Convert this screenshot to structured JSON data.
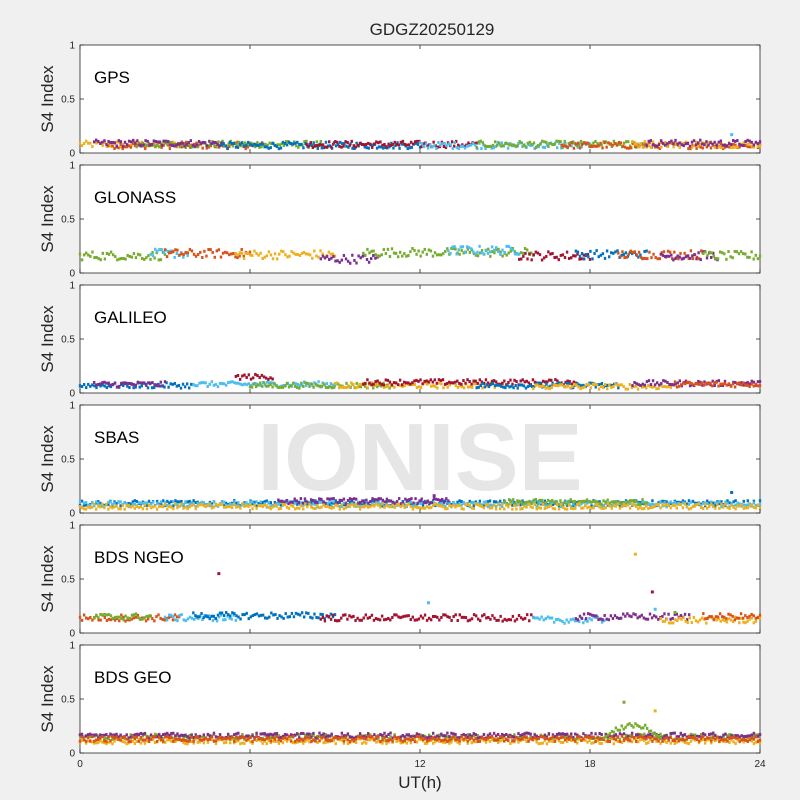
{
  "chart_data": {
    "type": "scatter",
    "title": "GDGZ20250129",
    "xlabel": "UT(h)",
    "ylabel": "S4 Index",
    "xlim": [
      0,
      24
    ],
    "ylim": [
      0,
      1
    ],
    "xticks": [
      0,
      6,
      12,
      18,
      24
    ],
    "yticks": [
      0,
      0.5,
      1
    ],
    "watermark": "IONISE",
    "series_colors": [
      "#0072BD",
      "#D95319",
      "#EDB120",
      "#7E2F8E",
      "#77AC30",
      "#4DBEEE",
      "#A2142F"
    ],
    "panels": [
      {
        "label": "GPS",
        "baseline": 0.07,
        "noise": 0.03,
        "segments": [
          {
            "color": "#EDB120",
            "x0": 0.0,
            "x1": 4.0,
            "level": 0.08
          },
          {
            "color": "#D95319",
            "x0": 1.0,
            "x1": 6.5,
            "level": 0.07
          },
          {
            "color": "#77AC30",
            "x0": 2.0,
            "x1": 8.5,
            "level": 0.08
          },
          {
            "color": "#7E2F8E",
            "x0": 0.5,
            "x1": 5.0,
            "level": 0.09
          },
          {
            "color": "#0072BD",
            "x0": 5.0,
            "x1": 12.0,
            "level": 0.07
          },
          {
            "color": "#A2142F",
            "x0": 8.0,
            "x1": 14.0,
            "level": 0.08
          },
          {
            "color": "#4DBEEE",
            "x0": 12.0,
            "x1": 18.0,
            "level": 0.07
          },
          {
            "color": "#77AC30",
            "x0": 14.0,
            "x1": 20.0,
            "level": 0.08
          },
          {
            "color": "#D95319",
            "x0": 17.0,
            "x1": 24.0,
            "level": 0.07
          },
          {
            "color": "#EDB120",
            "x0": 19.5,
            "x1": 24.0,
            "level": 0.08
          },
          {
            "color": "#7E2F8E",
            "x0": 20.0,
            "x1": 24.0,
            "level": 0.09
          }
        ],
        "outliers": [
          {
            "x": 23.0,
            "y": 0.17,
            "color": "#4DBEEE"
          }
        ]
      },
      {
        "label": "GLONASS",
        "baseline": 0.17,
        "noise": 0.04,
        "segments": [
          {
            "color": "#77AC30",
            "x0": 0.0,
            "x1": 3.0,
            "level": 0.16
          },
          {
            "color": "#4DBEEE",
            "x0": 2.5,
            "x1": 3.8,
            "level": 0.18
          },
          {
            "color": "#D95319",
            "x0": 3.0,
            "x1": 6.0,
            "level": 0.18
          },
          {
            "color": "#EDB120",
            "x0": 5.5,
            "x1": 9.0,
            "level": 0.17
          },
          {
            "color": "#7E2F8E",
            "x0": 8.5,
            "x1": 10.5,
            "level": 0.13
          },
          {
            "color": "#77AC30",
            "x0": 10.0,
            "x1": 16.0,
            "level": 0.19
          },
          {
            "color": "#4DBEEE",
            "x0": 13.0,
            "x1": 15.5,
            "level": 0.21
          },
          {
            "color": "#A2142F",
            "x0": 15.5,
            "x1": 18.0,
            "level": 0.16
          },
          {
            "color": "#0072BD",
            "x0": 17.5,
            "x1": 20.0,
            "level": 0.17
          },
          {
            "color": "#D95319",
            "x0": 19.0,
            "x1": 22.0,
            "level": 0.17
          },
          {
            "color": "#7E2F8E",
            "x0": 20.5,
            "x1": 22.5,
            "level": 0.16
          },
          {
            "color": "#77AC30",
            "x0": 22.0,
            "x1": 24.0,
            "level": 0.16
          }
        ],
        "outliers": []
      },
      {
        "label": "GALILEO",
        "baseline": 0.07,
        "noise": 0.025,
        "segments": [
          {
            "color": "#0072BD",
            "x0": 0.0,
            "x1": 4.0,
            "level": 0.07
          },
          {
            "color": "#7E2F8E",
            "x0": 0.5,
            "x1": 3.0,
            "level": 0.08
          },
          {
            "color": "#A2142F",
            "x0": 5.5,
            "x1": 6.8,
            "level": 0.15
          },
          {
            "color": "#4DBEEE",
            "x0": 4.0,
            "x1": 9.0,
            "level": 0.08
          },
          {
            "color": "#77AC30",
            "x0": 6.0,
            "x1": 11.0,
            "level": 0.07
          },
          {
            "color": "#EDB120",
            "x0": 9.0,
            "x1": 15.0,
            "level": 0.07
          },
          {
            "color": "#A2142F",
            "x0": 10.0,
            "x1": 17.5,
            "level": 0.1
          },
          {
            "color": "#0072BD",
            "x0": 14.0,
            "x1": 19.0,
            "level": 0.07
          },
          {
            "color": "#EDB120",
            "x0": 16.0,
            "x1": 21.0,
            "level": 0.06
          },
          {
            "color": "#7E2F8E",
            "x0": 19.5,
            "x1": 24.0,
            "level": 0.09
          },
          {
            "color": "#D95319",
            "x0": 21.0,
            "x1": 24.0,
            "level": 0.08
          }
        ],
        "outliers": []
      },
      {
        "label": "SBAS",
        "baseline": 0.09,
        "noise": 0.025,
        "segments": [
          {
            "color": "#0072BD",
            "x0": 0.0,
            "x1": 24.0,
            "level": 0.09
          },
          {
            "color": "#4DBEEE",
            "x0": 0.0,
            "x1": 24.0,
            "level": 0.08
          },
          {
            "color": "#7E2F8E",
            "x0": 7.0,
            "x1": 13.0,
            "level": 0.11
          },
          {
            "color": "#77AC30",
            "x0": 15.0,
            "x1": 20.0,
            "level": 0.1
          },
          {
            "color": "#EDB120",
            "x0": 0.0,
            "x1": 24.0,
            "level": 0.06
          }
        ],
        "outliers": [
          {
            "x": 23.0,
            "y": 0.19,
            "color": "#0072BD"
          },
          {
            "x": 12.5,
            "y": 0.16,
            "color": "#7E2F8E"
          }
        ]
      },
      {
        "label": "BDS NGEO",
        "baseline": 0.15,
        "noise": 0.03,
        "segments": [
          {
            "color": "#D95319",
            "x0": 0.0,
            "x1": 3.5,
            "level": 0.14
          },
          {
            "color": "#77AC30",
            "x0": 0.5,
            "x1": 2.5,
            "level": 0.15
          },
          {
            "color": "#4DBEEE",
            "x0": 3.0,
            "x1": 5.5,
            "level": 0.14
          },
          {
            "color": "#0072BD",
            "x0": 4.0,
            "x1": 9.0,
            "level": 0.16
          },
          {
            "color": "#A2142F",
            "x0": 8.5,
            "x1": 16.0,
            "level": 0.14
          },
          {
            "color": "#4DBEEE",
            "x0": 16.0,
            "x1": 18.5,
            "level": 0.12
          },
          {
            "color": "#7E2F8E",
            "x0": 17.5,
            "x1": 21.5,
            "level": 0.15
          },
          {
            "color": "#EDB120",
            "x0": 20.5,
            "x1": 24.0,
            "level": 0.12
          },
          {
            "color": "#D95319",
            "x0": 22.0,
            "x1": 24.0,
            "level": 0.15
          }
        ],
        "outliers": [
          {
            "x": 4.9,
            "y": 0.55,
            "color": "#A2142F"
          },
          {
            "x": 12.3,
            "y": 0.28,
            "color": "#4DBEEE"
          },
          {
            "x": 19.6,
            "y": 0.73,
            "color": "#EDB120"
          },
          {
            "x": 20.2,
            "y": 0.38,
            "color": "#A2142F"
          },
          {
            "x": 20.3,
            "y": 0.22,
            "color": "#4DBEEE"
          },
          {
            "x": 21.0,
            "y": 0.19,
            "color": "#77AC30"
          }
        ]
      },
      {
        "label": "BDS GEO",
        "baseline": 0.14,
        "noise": 0.025,
        "segments": [
          {
            "color": "#77AC30",
            "x0": 0.0,
            "x1": 24.0,
            "level": 0.15
          },
          {
            "color": "#7E2F8E",
            "x0": 0.0,
            "x1": 24.0,
            "level": 0.16
          },
          {
            "color": "#EDB120",
            "x0": 0.0,
            "x1": 24.0,
            "level": 0.11
          },
          {
            "color": "#D95319",
            "x0": 0.0,
            "x1": 24.0,
            "level": 0.13
          }
        ],
        "bump": {
          "x0": 18.5,
          "x1": 20.5,
          "peak": 0.28,
          "color": "#77AC30"
        },
        "outliers": [
          {
            "x": 19.2,
            "y": 0.47,
            "color": "#77AC30"
          },
          {
            "x": 20.3,
            "y": 0.39,
            "color": "#EDB120"
          }
        ]
      }
    ]
  }
}
